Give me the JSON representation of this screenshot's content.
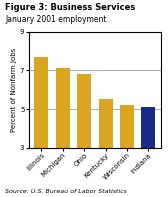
{
  "chart_data": {
    "type": "bar",
    "title": "Figure 3: Business Services",
    "subtitle": "January 2001 employment",
    "categories": [
      "Illinois",
      "Michigan",
      "Ohio",
      "Kentucky",
      "Wisconsin",
      "Indiana"
    ],
    "values": [
      7.7,
      7.1,
      6.8,
      5.5,
      5.2,
      5.1
    ],
    "colors": [
      "#DAA520",
      "#DAA520",
      "#DAA520",
      "#DAA520",
      "#DAA520",
      "#1a2a8a"
    ],
    "ylabel": "Percent of Nonfarm Jobs",
    "ylim": [
      3,
      9
    ],
    "yticks": [
      3,
      5,
      7,
      9
    ],
    "grid": true,
    "source": "Source: U.S. Bureau of Labor Statistics"
  }
}
